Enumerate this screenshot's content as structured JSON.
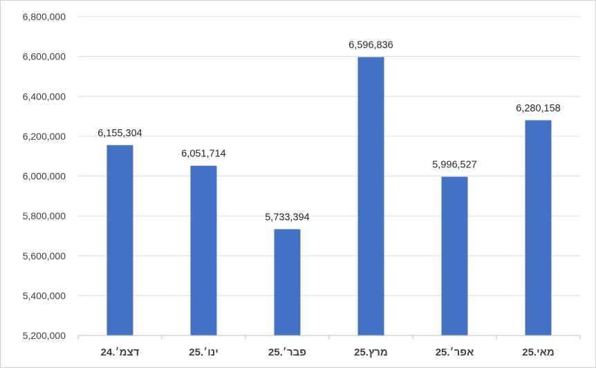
{
  "chart_data": {
    "type": "bar",
    "title": "",
    "xlabel": "",
    "ylabel": "",
    "categories": [
      "דצמ׳.24",
      "ינו׳.25",
      "פבר׳.25",
      "מרץ.25",
      "אפר׳.25",
      "מאי.25"
    ],
    "values": [
      6155304,
      6051714,
      5733394,
      6596836,
      5996527,
      6280158
    ],
    "data_labels": [
      "6,155,304",
      "6,051,714",
      "5,733,394",
      "6,596,836",
      "5,996,527",
      "6,280,158"
    ],
    "ylim": [
      5200000,
      6800000
    ],
    "yticks": [
      5200000,
      5400000,
      5600000,
      5800000,
      6000000,
      6200000,
      6400000,
      6600000,
      6800000
    ],
    "ytick_labels": [
      "5,200,000",
      "5,400,000",
      "5,600,000",
      "5,800,000",
      "6,000,000",
      "6,200,000",
      "6,400,000",
      "6,600,000",
      "6,800,000"
    ],
    "grid": true,
    "legend": "none",
    "bar_color": "#4472C4",
    "grid_color": "#d9d9d9"
  }
}
